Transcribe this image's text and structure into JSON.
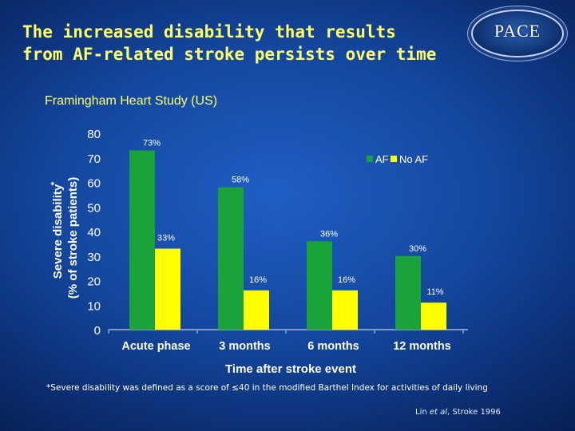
{
  "slide": {
    "title_line1": "The increased disability that results",
    "title_line2": "from AF-related stroke persists over time",
    "logo_text": "PACE",
    "footnote": "*Severe disability was defined as a score of ≤40 in the modified Barthel Index for activities of daily living",
    "citation_pre": "Lin ",
    "citation_italic": "et al",
    "citation_post": ", Stroke 1996"
  },
  "colors": {
    "af": "#1aa33a",
    "no_af": "#ffff00",
    "axis_text": "#ffffff",
    "title_text": "#ffff66",
    "value_label": "#ffffff"
  },
  "chart_data": {
    "type": "bar",
    "title": "Framingham Heart Study (US)",
    "xlabel": "Time after stroke event",
    "ylabel_line1": "Severe disability",
    "ylabel_line2": "(% of stroke patients)",
    "categories": [
      "Acute phase",
      "3 months",
      "6 months",
      "12 months"
    ],
    "series": [
      {
        "name": "AF",
        "color": "#1aa33a",
        "values": [
          73,
          58,
          36,
          30
        ],
        "labels": [
          "73%",
          "58%",
          "36%",
          "30%"
        ]
      },
      {
        "name": "No AF",
        "color": "#ffff00",
        "values": [
          33,
          16,
          16,
          11
        ],
        "labels": [
          "33%",
          "16%",
          "16%",
          "11%"
        ]
      }
    ],
    "ylim": [
      0,
      80
    ],
    "yticks": [
      0,
      10,
      20,
      30,
      40,
      50,
      60,
      70,
      80
    ],
    "grid": false,
    "legend": "top-right"
  }
}
